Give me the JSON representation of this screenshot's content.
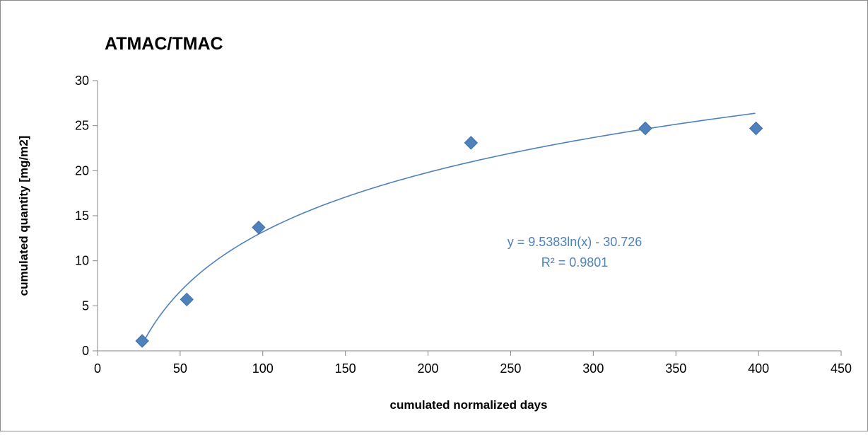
{
  "chart_data": {
    "type": "scatter",
    "title": "ATMAC/TMAC",
    "xlabel": "cumulated normalized days",
    "ylabel": "cumulated quantity [mg/m2]",
    "xlim": [
      0,
      450
    ],
    "ylim": [
      0,
      30
    ],
    "xticks": [
      0,
      50,
      100,
      150,
      200,
      250,
      300,
      350,
      400,
      450
    ],
    "yticks": [
      0,
      5,
      10,
      15,
      20,
      25,
      30
    ],
    "grid": false,
    "legend": "none",
    "series": [
      {
        "marker": "diamond",
        "color": "#4F81BD",
        "points": [
          {
            "x": 27,
            "y": 1.1
          },
          {
            "x": 54,
            "y": 5.7
          },
          {
            "x": 97.5,
            "y": 13.7
          },
          {
            "x": 226,
            "y": 23.1
          },
          {
            "x": 331.5,
            "y": 24.7
          },
          {
            "x": 398.5,
            "y": 24.7
          }
        ]
      }
    ],
    "trendline": {
      "type": "logarithmic",
      "a": 9.5383,
      "b": -30.726,
      "x_range": [
        27,
        398
      ],
      "color": "#4F81BD",
      "equation_label": "y = 9.5383ln(x) - 30.726",
      "r2_label": "R² = 0.9801"
    }
  }
}
